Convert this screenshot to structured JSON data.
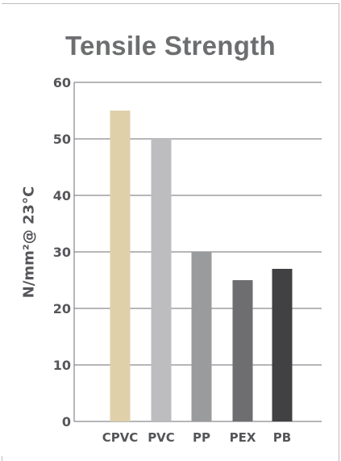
{
  "chart_data": {
    "type": "bar",
    "title": "Tensile Strength",
    "ylabel": "N/mm²@ 23°C",
    "xlabel": "",
    "categories": [
      "CPVC",
      "PVC",
      "PP",
      "PEX",
      "PB"
    ],
    "values": [
      55,
      50,
      30,
      25,
      27
    ],
    "colors": [
      "#dfd0aa",
      "#bdbdbf",
      "#9a9b9d",
      "#6e6e71",
      "#414143"
    ],
    "ylim": [
      0,
      60
    ],
    "yticks": [
      "0",
      "10",
      "20",
      "30",
      "40",
      "50",
      "60"
    ],
    "grid": true,
    "gridColor": "#6e6e70"
  }
}
